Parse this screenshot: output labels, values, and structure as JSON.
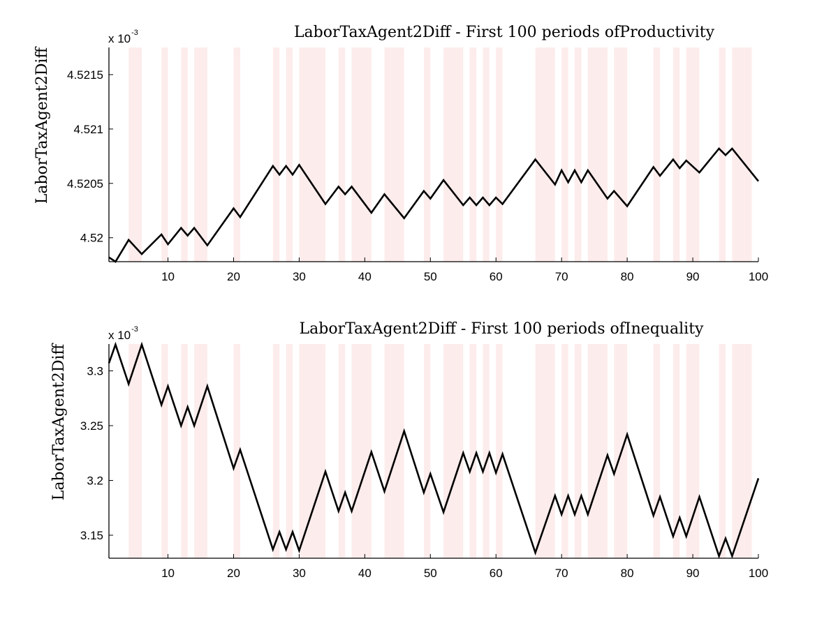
{
  "chart_data": [
    {
      "type": "line",
      "title": "LaborTaxAgent2Diff - First 100 periods ofProductivity",
      "xlabel": "",
      "ylabel": "LaborTaxAgent2Diff",
      "y_exponent_base": "x 10",
      "y_exponent": "-3",
      "xlim": [
        1,
        100
      ],
      "ylim": [
        4.51978,
        4.52175
      ],
      "xticks": [
        10,
        20,
        30,
        40,
        50,
        60,
        70,
        80,
        90,
        100
      ],
      "xtick_labels": [
        "10",
        "20",
        "30",
        "40",
        "50",
        "60",
        "70",
        "80",
        "90",
        "100"
      ],
      "yticks": [
        4.52,
        4.5205,
        4.521,
        4.5215
      ],
      "ytick_labels": [
        "4.52",
        "4.5205",
        "4.521",
        "4.5215"
      ],
      "shading_color": "#fdecec",
      "line_color": "#000000",
      "shaded_periods": [
        [
          4,
          6
        ],
        [
          9,
          10
        ],
        [
          12,
          13
        ],
        [
          14,
          16
        ],
        [
          20,
          21
        ],
        [
          26,
          27
        ],
        [
          28,
          29
        ],
        [
          30,
          34
        ],
        [
          36,
          37
        ],
        [
          38,
          41
        ],
        [
          43,
          46
        ],
        [
          49,
          50
        ],
        [
          52,
          55
        ],
        [
          56,
          57
        ],
        [
          58,
          59
        ],
        [
          60,
          61
        ],
        [
          66,
          69
        ],
        [
          70,
          71
        ],
        [
          72,
          73
        ],
        [
          74,
          77
        ],
        [
          78,
          80
        ],
        [
          84,
          85
        ],
        [
          87,
          88
        ],
        [
          89,
          91
        ],
        [
          94,
          95
        ],
        [
          96,
          99
        ]
      ],
      "x": [
        1,
        2,
        4,
        6,
        9,
        10,
        12,
        13,
        14,
        16,
        20,
        21,
        26,
        27,
        28,
        29,
        30,
        34,
        36,
        37,
        38,
        41,
        43,
        46,
        49,
        50,
        52,
        55,
        56,
        57,
        58,
        59,
        60,
        61,
        66,
        69,
        70,
        71,
        72,
        73,
        74,
        77,
        78,
        80,
        84,
        85,
        87,
        88,
        89,
        91,
        94,
        95,
        96,
        100
      ],
      "values": [
        4.51982,
        4.51978,
        4.51998,
        4.51985,
        4.52003,
        4.51994,
        4.52009,
        4.52002,
        4.52009,
        4.51993,
        4.52027,
        4.52019,
        4.52066,
        4.52058,
        4.52066,
        4.52058,
        4.52067,
        4.52031,
        4.52047,
        4.5204,
        4.52047,
        4.52023,
        4.5204,
        4.52018,
        4.52043,
        4.52036,
        4.52053,
        4.5203,
        4.52037,
        4.5203,
        4.52037,
        4.5203,
        4.52037,
        4.52031,
        4.52072,
        4.52049,
        4.52062,
        4.52051,
        4.52062,
        4.52051,
        4.52062,
        4.52036,
        4.52043,
        4.52029,
        4.52065,
        4.52057,
        4.52072,
        4.52064,
        4.52071,
        4.5206,
        4.52082,
        4.52076,
        4.52082,
        4.52052
      ]
    },
    {
      "type": "line",
      "title": "LaborTaxAgent2Diff - First 100 periods ofInequality",
      "xlabel": "",
      "ylabel": "LaborTaxAgent2Diff",
      "y_exponent_base": "x 10",
      "y_exponent": "-3",
      "xlim": [
        1,
        100
      ],
      "ylim": [
        3.129,
        3.3245
      ],
      "xticks": [
        10,
        20,
        30,
        40,
        50,
        60,
        70,
        80,
        90,
        100
      ],
      "xtick_labels": [
        "10",
        "20",
        "30",
        "40",
        "50",
        "60",
        "70",
        "80",
        "90",
        "100"
      ],
      "yticks": [
        3.15,
        3.2,
        3.25,
        3.3
      ],
      "ytick_labels": [
        "3.15",
        "3.2",
        "3.25",
        "3.3"
      ],
      "shading_color": "#fdecec",
      "line_color": "#000000",
      "shaded_periods": [
        [
          4,
          6
        ],
        [
          9,
          10
        ],
        [
          12,
          13
        ],
        [
          14,
          16
        ],
        [
          20,
          21
        ],
        [
          26,
          27
        ],
        [
          28,
          29
        ],
        [
          30,
          34
        ],
        [
          36,
          37
        ],
        [
          38,
          41
        ],
        [
          43,
          46
        ],
        [
          49,
          50
        ],
        [
          52,
          55
        ],
        [
          56,
          57
        ],
        [
          58,
          59
        ],
        [
          60,
          61
        ],
        [
          66,
          69
        ],
        [
          70,
          71
        ],
        [
          72,
          73
        ],
        [
          74,
          77
        ],
        [
          78,
          80
        ],
        [
          84,
          85
        ],
        [
          87,
          88
        ],
        [
          89,
          91
        ],
        [
          94,
          95
        ],
        [
          96,
          99
        ]
      ],
      "x": [
        1,
        2,
        4,
        6,
        9,
        10,
        12,
        13,
        14,
        16,
        20,
        21,
        26,
        27,
        28,
        29,
        30,
        34,
        36,
        37,
        38,
        41,
        43,
        46,
        49,
        50,
        52,
        55,
        56,
        57,
        58,
        59,
        60,
        61,
        66,
        69,
        70,
        71,
        72,
        73,
        74,
        77,
        78,
        80,
        84,
        85,
        87,
        88,
        89,
        91,
        94,
        95,
        96,
        100
      ],
      "values": [
        3.307,
        3.324,
        3.288,
        3.324,
        3.269,
        3.286,
        3.25,
        3.267,
        3.25,
        3.286,
        3.211,
        3.228,
        3.137,
        3.153,
        3.137,
        3.153,
        3.136,
        3.208,
        3.172,
        3.189,
        3.172,
        3.226,
        3.19,
        3.245,
        3.189,
        3.206,
        3.171,
        3.225,
        3.208,
        3.225,
        3.208,
        3.225,
        3.207,
        3.224,
        3.134,
        3.186,
        3.169,
        3.186,
        3.169,
        3.186,
        3.169,
        3.223,
        3.206,
        3.242,
        3.168,
        3.185,
        3.149,
        3.166,
        3.149,
        3.185,
        3.131,
        3.147,
        3.131,
        3.202
      ]
    }
  ]
}
